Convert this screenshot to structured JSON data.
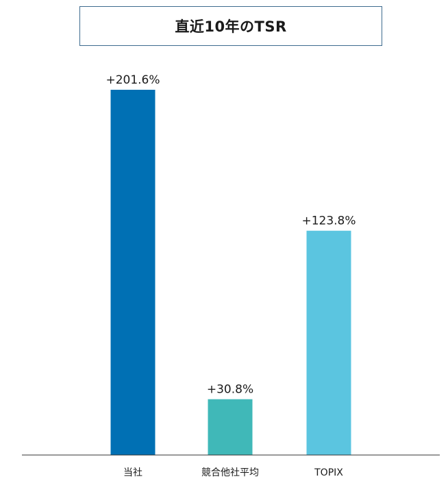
{
  "chart_data": {
    "type": "bar",
    "title": "直近10年のTSR",
    "categories": [
      "当社",
      "競合他社平均",
      "TOPIX"
    ],
    "values": [
      201.6,
      30.8,
      123.8
    ],
    "value_labels": [
      "+201.6%",
      "+30.8%",
      "+123.8%"
    ],
    "colors": [
      "#0070b4",
      "#40b8b8",
      "#5bc5e0"
    ],
    "xlabel": "",
    "ylabel": "",
    "ylim": [
      0,
      201.6
    ],
    "grid": false,
    "legend": "none"
  },
  "colors": {
    "title_border": "#3d6a8e",
    "axis": "#333333"
  }
}
